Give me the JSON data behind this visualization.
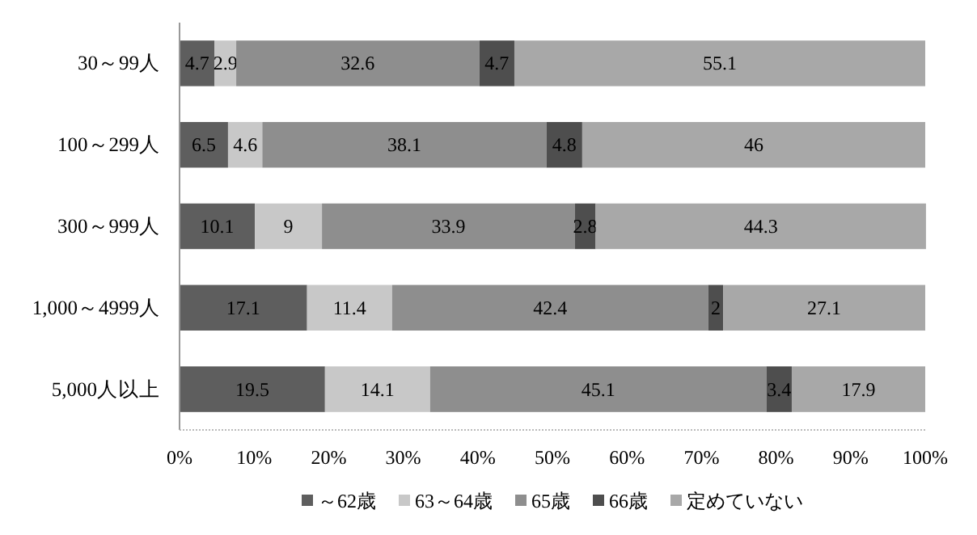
{
  "chart_data": {
    "type": "bar",
    "orientation": "horizontal",
    "stacked": true,
    "data_labels": true,
    "legend": "bottom",
    "grid": false,
    "categories": [
      "30～99人",
      "100～299人",
      "300～999人",
      "1,000～4999人",
      "5,000人以上"
    ],
    "xlim": [
      0,
      100
    ],
    "xticks": [
      {
        "value": 0,
        "label": "0%"
      },
      {
        "value": 10,
        "label": "10%"
      },
      {
        "value": 20,
        "label": "20%"
      },
      {
        "value": 30,
        "label": "30%"
      },
      {
        "value": 40,
        "label": "40%"
      },
      {
        "value": 50,
        "label": "50%"
      },
      {
        "value": 60,
        "label": "60%"
      },
      {
        "value": 70,
        "label": "70%"
      },
      {
        "value": 80,
        "label": "80%"
      },
      {
        "value": 90,
        "label": "90%"
      },
      {
        "value": 100,
        "label": "100%"
      }
    ],
    "series": [
      {
        "name": "～62歳",
        "color": "#5e5e5e",
        "values": [
          4.7,
          6.5,
          10.1,
          17.1,
          19.5
        ]
      },
      {
        "name": "63～64歳",
        "color": "#c8c8c8",
        "values": [
          2.9,
          4.6,
          9,
          11.4,
          14.1
        ]
      },
      {
        "name": "65歳",
        "color": "#8e8e8e",
        "values": [
          32.6,
          38.1,
          33.9,
          42.4,
          45.1
        ]
      },
      {
        "name": "66歳",
        "color": "#4e4e4e",
        "values": [
          4.7,
          4.8,
          2.8,
          2,
          3.4
        ]
      },
      {
        "name": "定めていない",
        "color": "#a8a8a8",
        "values": [
          55.1,
          46,
          44.3,
          27.1,
          17.9
        ]
      }
    ]
  }
}
